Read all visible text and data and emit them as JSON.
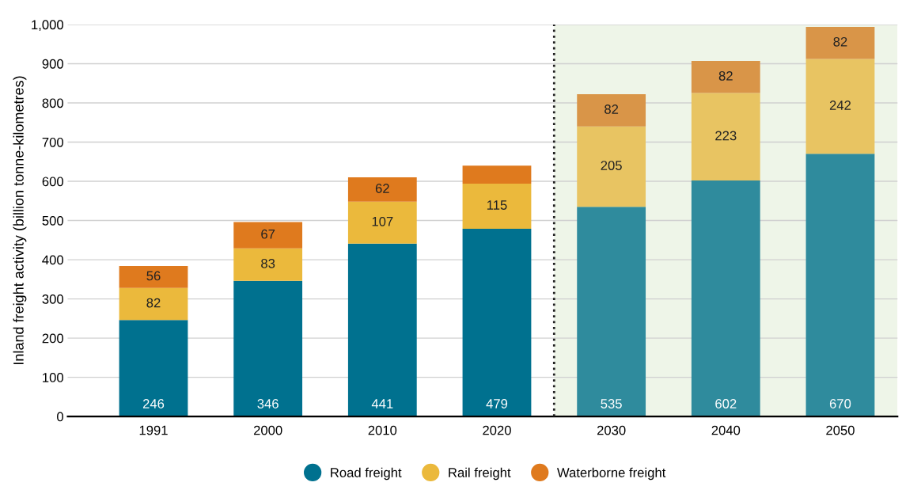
{
  "chart_data": {
    "type": "bar",
    "stacked": true,
    "ylabel": "Inland freight activity (billion tonne-kilometres)",
    "categories": [
      "1991",
      "2000",
      "2010",
      "2020",
      "2030",
      "2040",
      "2050"
    ],
    "series": [
      {
        "name": "Road freight",
        "color": "#00718f",
        "colors": [
          "#00718f",
          "#00718f",
          "#00718f",
          "#00718f",
          "#2f8b9d",
          "#2f8b9d",
          "#2f8b9d"
        ],
        "values": [
          246,
          346,
          441,
          479,
          535,
          602,
          670
        ],
        "value_labels": [
          "246",
          "346",
          "441",
          "479",
          "535",
          "602",
          "670"
        ]
      },
      {
        "name": "Rail freight",
        "color": "#ebb93c",
        "colors": [
          "#ebb93c",
          "#ebb93c",
          "#ebb93c",
          "#ebb93c",
          "#e8c462",
          "#e8c462",
          "#e8c462"
        ],
        "values": [
          82,
          83,
          107,
          115,
          205,
          223,
          242
        ],
        "value_labels": [
          "82",
          "83",
          "107",
          "115",
          "205",
          "223",
          "242"
        ]
      },
      {
        "name": "Waterborne freight",
        "color": "#df7a1e",
        "colors": [
          "#df7a1e",
          "#df7a1e",
          "#df7a1e",
          "#df7a1e",
          "#d99548",
          "#d99548",
          "#d99548"
        ],
        "values": [
          56,
          67,
          62,
          46,
          82,
          82,
          82
        ],
        "value_labels": [
          "56",
          "67",
          "62",
          null,
          "82",
          "82",
          "82"
        ]
      }
    ],
    "ylim": [
      0,
      1000
    ],
    "yticks": [
      0,
      100,
      200,
      300,
      400,
      500,
      600,
      700,
      800,
      900,
      {
        "value": 1000,
        "label": "1,000"
      }
    ],
    "grid": "y",
    "legend": "bottom",
    "bands": [
      {
        "axis": "x",
        "from": "2030",
        "to": "2050",
        "color": "#eef5e8"
      }
    ],
    "ref_lines": [
      {
        "axis": "x",
        "value": "2030",
        "line_style": "dotted",
        "color": "#222222"
      }
    ]
  }
}
